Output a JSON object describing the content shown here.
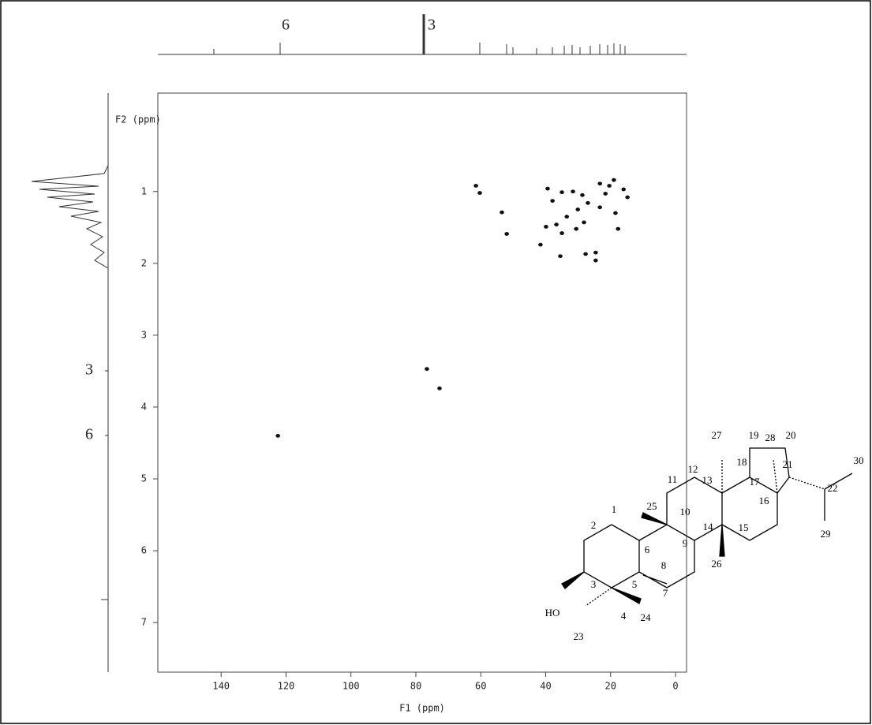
{
  "chart_data": {
    "type": "scatter",
    "x_label": "F1 (ppm)",
    "y_label": "F2 (ppm)",
    "xlim": [
      159.5,
      -3.4
    ],
    "xticks": [
      140,
      120,
      100,
      80,
      60,
      40,
      20,
      0
    ],
    "ylim": [
      -0.37,
      7.69
    ],
    "yticks": [
      1,
      2,
      3,
      4,
      5,
      6,
      7
    ],
    "color": "#111111",
    "x": [
      61.5,
      60.3,
      53.5,
      52.0,
      76.6,
      72.7,
      122.5,
      39.4,
      35.0,
      31.6,
      28.7,
      23.3,
      20.4,
      16.0,
      27.0,
      30.1,
      33.5,
      36.7,
      28.2,
      30.6,
      35.0,
      23.3,
      18.5,
      17.7,
      39.9,
      41.6,
      35.5,
      27.7,
      24.6,
      24.6,
      21.6,
      19.0,
      14.8,
      37.9
    ],
    "y": [
      0.92,
      1.02,
      1.29,
      1.59,
      3.47,
      3.74,
      4.4,
      0.96,
      1.01,
      1.0,
      1.05,
      0.89,
      0.92,
      0.97,
      1.16,
      1.25,
      1.35,
      1.46,
      1.43,
      1.52,
      1.58,
      1.22,
      1.3,
      1.52,
      1.49,
      1.74,
      1.9,
      1.87,
      1.96,
      1.85,
      1.03,
      0.84,
      1.08,
      1.13
    ],
    "annotations": [
      "6",
      "3",
      "3",
      "6"
    ],
    "structure": {
      "labels": [
        "1",
        "2",
        "3",
        "4",
        "5",
        "6",
        "7",
        "8",
        "9",
        "10",
        "11",
        "12",
        "13",
        "14",
        "15",
        "16",
        "17",
        "18",
        "19",
        "20",
        "21",
        "22",
        "23",
        "24",
        "25",
        "26",
        "27",
        "28",
        "29",
        "30",
        "HO"
      ]
    }
  }
}
